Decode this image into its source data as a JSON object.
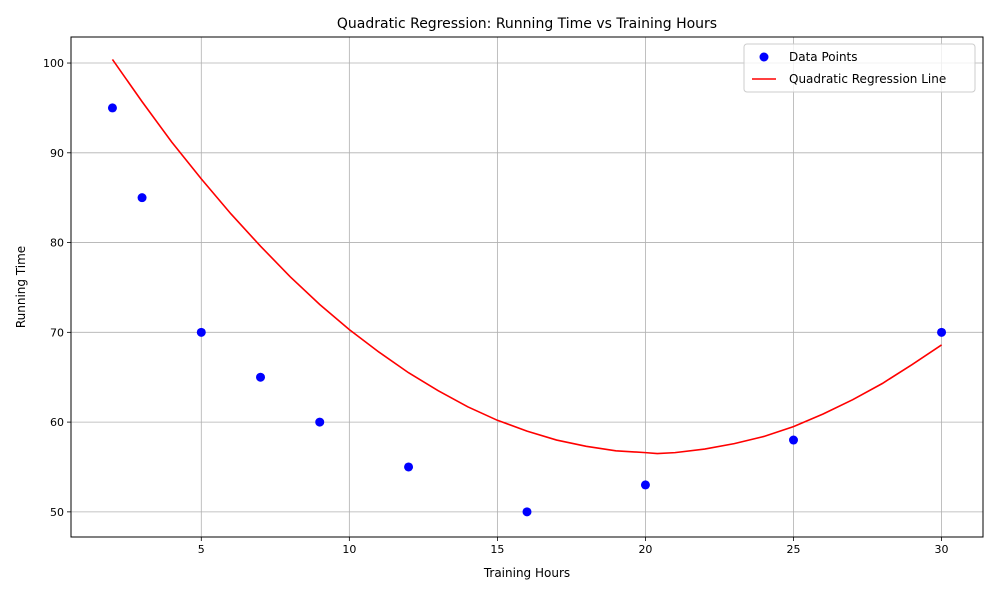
{
  "chart_data": {
    "type": "scatter",
    "title": "Quadratic Regression: Running Time vs Training Hours",
    "xlabel": "Training Hours",
    "ylabel": "Running Time",
    "xlim": [
      0.6,
      31.4
    ],
    "ylim": [
      47.2,
      102.9
    ],
    "xticks": [
      5,
      10,
      15,
      20,
      25,
      30
    ],
    "yticks": [
      50,
      60,
      70,
      80,
      90,
      100
    ],
    "grid": true,
    "legend_position": "top-right",
    "series": [
      {
        "name": "Data Points",
        "kind": "scatter",
        "color": "#0000ff",
        "x": [
          2,
          3,
          5,
          7,
          9,
          12,
          16,
          20,
          25,
          30
        ],
        "y": [
          95,
          85,
          70,
          65,
          60,
          55,
          50,
          53,
          58,
          70
        ]
      },
      {
        "name": "Quadratic Regression Line",
        "kind": "line",
        "color": "#ff0000",
        "x": [
          2,
          3,
          4,
          5,
          6,
          7,
          8,
          9,
          10,
          11,
          12,
          13,
          14,
          15,
          16,
          17,
          18,
          19,
          20,
          20.4,
          21,
          22,
          23,
          24,
          25,
          26,
          27,
          28,
          29,
          30
        ],
        "y": [
          100.4,
          95.7,
          91.2,
          87.1,
          83.2,
          79.6,
          76.2,
          73.1,
          70.3,
          67.8,
          65.5,
          63.5,
          61.7,
          60.2,
          59.0,
          58.0,
          57.3,
          56.8,
          56.6,
          56.5,
          56.6,
          57.0,
          57.6,
          58.4,
          59.5,
          60.9,
          62.5,
          64.3,
          66.4,
          68.6
        ]
      }
    ]
  }
}
